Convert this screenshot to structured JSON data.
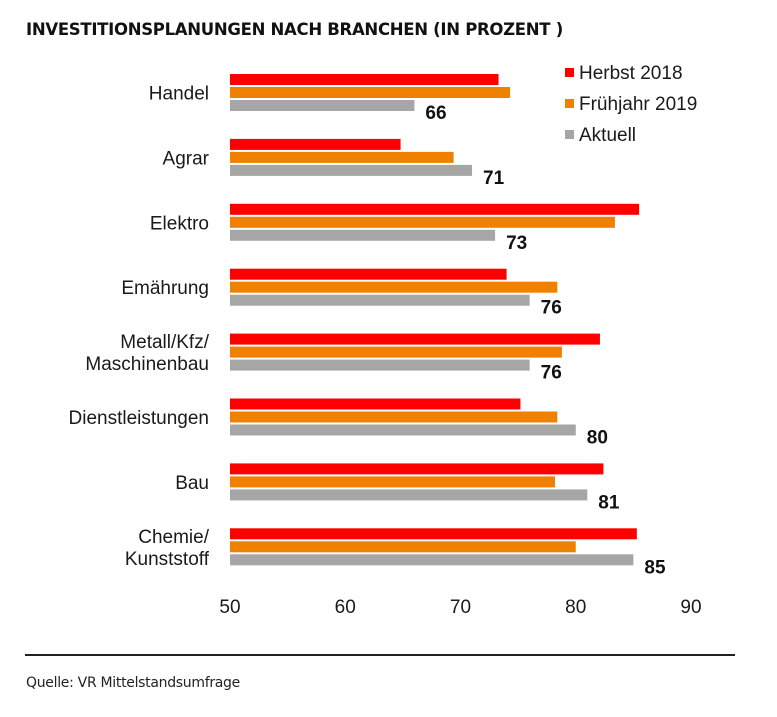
{
  "chart_data": {
    "type": "bar",
    "orientation": "horizontal",
    "title": "INVESTITIONSPLANUNGEN NACH BRANCHEN (IN PROZENT )",
    "xlabel": "",
    "ylabel": "",
    "xlim": [
      50,
      90
    ],
    "xticks": [
      50,
      60,
      70,
      80,
      90
    ],
    "grid": false,
    "legend_position": "top-right",
    "categories": [
      [
        "Handel"
      ],
      [
        "Agrar"
      ],
      [
        "Elektro"
      ],
      [
        "Emährung"
      ],
      [
        "Metall/Kfz/",
        "Maschinenbau"
      ],
      [
        "Dienstleistungen"
      ],
      [
        "Bau"
      ],
      [
        "Chemie/",
        "Kunststoff"
      ]
    ],
    "series": [
      {
        "name": "Herbst 2018",
        "color": "#FF0000",
        "values": [
          73.3,
          64.8,
          85.5,
          74.0,
          82.1,
          75.2,
          82.4,
          85.3
        ]
      },
      {
        "name": "Frühjahr 2019",
        "color": "#F08000",
        "values": [
          74.3,
          69.4,
          83.4,
          78.4,
          78.8,
          78.4,
          78.2,
          80.0
        ]
      },
      {
        "name": "Aktuell",
        "color": "#A6A6A6",
        "values": [
          66,
          71,
          73,
          76,
          76,
          80,
          81,
          85
        ]
      }
    ],
    "data_labels": {
      "series": "Aktuell",
      "values": [
        "66",
        "71",
        "73",
        "76",
        "76",
        "80",
        "81",
        "85"
      ]
    }
  },
  "footer": {
    "source": "Quelle: VR Mittelstandsumfrage"
  }
}
